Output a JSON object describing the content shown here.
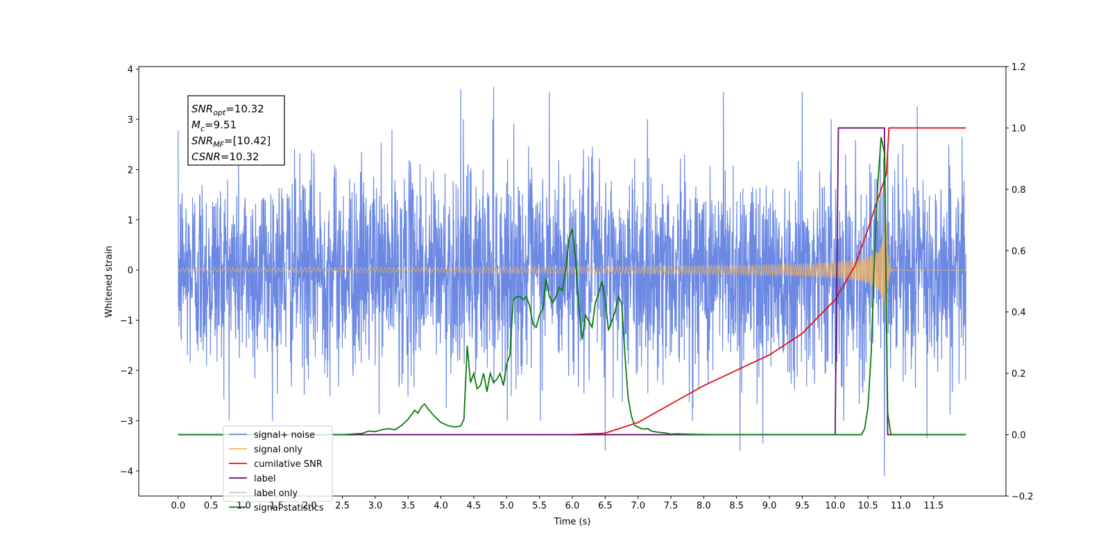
{
  "chart_data": {
    "type": "line",
    "title": "",
    "xlabel": "Time (s)",
    "ylabel": "Whitened strain",
    "y2label": "",
    "xlim": [
      -0.6,
      12.6
    ],
    "ylim": [
      -4.5,
      4.05
    ],
    "y2lim": [
      -0.2,
      1.2
    ],
    "x_ticks": [
      0.0,
      0.5,
      1.0,
      1.5,
      2.0,
      2.5,
      3.0,
      3.5,
      4.0,
      4.5,
      5.0,
      5.5,
      6.0,
      6.5,
      7.0,
      7.5,
      8.0,
      8.5,
      9.0,
      9.5,
      10.0,
      10.5,
      11.0,
      11.5
    ],
    "x_tick_labels": [
      "0.0",
      "0.5",
      "1.0",
      "1.5",
      "2.0",
      "2.5",
      "3.0",
      "3.5",
      "4.0",
      "4.5",
      "5.0",
      "5.5",
      "6.0",
      "6.5",
      "7.0",
      "7.5",
      "8.0",
      "8.5",
      "9.0",
      "9.5",
      "10.0",
      "10.5",
      "11.0",
      "11.5"
    ],
    "y_ticks": [
      -4,
      -3,
      -2,
      -1,
      0,
      1,
      2,
      3,
      4
    ],
    "y_tick_labels": [
      "−4",
      "−3",
      "−2",
      "−1",
      "0",
      "1",
      "2",
      "3",
      "4"
    ],
    "y2_ticks": [
      -0.2,
      0.0,
      0.2,
      0.4,
      0.6,
      0.8,
      1.0,
      1.2
    ],
    "y2_tick_labels": [
      "−0.2",
      "0.0",
      "0.2",
      "0.4",
      "0.6",
      "0.8",
      "1.0",
      "1.2"
    ],
    "grid": false,
    "legend_position": "bottom-left",
    "annotation": {
      "lines": [
        {
          "main": "SNR",
          "sub": "opt",
          "rest": "=10.32"
        },
        {
          "main": "M",
          "sub": "c",
          "rest": "=9.51"
        },
        {
          "main": "SNR",
          "sub": "MF",
          "rest": "=[10.42]"
        },
        {
          "main": "CSNR",
          "sub": "",
          "rest": "=10.32"
        }
      ]
    },
    "series": [
      {
        "name": "signal+ noise",
        "color": "#6b88e3",
        "axis": "left",
        "description_kind": "noise",
        "x_range": [
          0.0,
          11.99
        ],
        "typical_abs": 1.0,
        "peaks": [
          [
            4.3,
            3.6
          ],
          [
            4.8,
            3.65
          ],
          [
            5.65,
            3.55
          ],
          [
            6.5,
            3.5
          ],
          [
            8.3,
            3.55
          ],
          [
            9.5,
            3.55
          ],
          [
            10.75,
            -4.1
          ],
          [
            11.25,
            3.25
          ],
          [
            6.5,
            -3.6
          ],
          [
            8.55,
            -3.6
          ],
          [
            8.9,
            -3.45
          ],
          [
            11.4,
            -3.35
          ]
        ]
      },
      {
        "name": "signal only",
        "color": "#f7b55a",
        "axis": "left",
        "description_kind": "chirp",
        "x_range": [
          0.0,
          11.99
        ],
        "merger_time": 10.78,
        "peak_amplitude": 1.3
      },
      {
        "name": "cumilative SNR",
        "color": "#e01010",
        "axis": "right",
        "x": [
          6.0,
          6.5,
          7.0,
          7.5,
          8.0,
          8.5,
          9.0,
          9.5,
          10.0,
          10.3,
          10.5,
          10.7,
          10.78,
          10.82,
          11.0,
          11.5,
          11.99
        ],
        "y": [
          0.0,
          0.005,
          0.04,
          0.1,
          0.16,
          0.21,
          0.26,
          0.33,
          0.44,
          0.55,
          0.67,
          0.8,
          0.85,
          1.0,
          1.0,
          1.0,
          1.0
        ]
      },
      {
        "name": "label",
        "color": "#6a0a7a",
        "axis": "right",
        "x": [
          0.0,
          10.0,
          10.05,
          10.75,
          10.8,
          11.99
        ],
        "y": [
          0.0,
          0.0,
          1.0,
          1.0,
          0.0,
          0.0
        ]
      },
      {
        "name": "label only",
        "color": "#cccccc",
        "axis": "right",
        "hidden": true,
        "x": [],
        "y": []
      },
      {
        "name": "signal statistics",
        "color": "#0a7a0a",
        "axis": "right",
        "x": [
          0.0,
          2.5,
          2.8,
          2.9,
          3.0,
          3.1,
          3.2,
          3.3,
          3.4,
          3.5,
          3.55,
          3.6,
          3.65,
          3.7,
          3.75,
          3.8,
          3.9,
          4.0,
          4.1,
          4.2,
          4.3,
          4.35,
          4.4,
          4.45,
          4.5,
          4.55,
          4.6,
          4.65,
          4.7,
          4.75,
          4.8,
          4.85,
          4.9,
          4.95,
          5.0,
          5.05,
          5.1,
          5.15,
          5.2,
          5.25,
          5.3,
          5.35,
          5.4,
          5.45,
          5.5,
          5.55,
          5.6,
          5.65,
          5.7,
          5.75,
          5.8,
          5.85,
          5.9,
          5.95,
          6.0,
          6.05,
          6.1,
          6.15,
          6.2,
          6.25,
          6.3,
          6.35,
          6.4,
          6.45,
          6.5,
          6.55,
          6.6,
          6.65,
          6.7,
          6.75,
          6.8,
          6.85,
          6.9,
          6.95,
          7.0,
          7.05,
          7.1,
          7.15,
          7.2,
          7.3,
          7.4,
          7.5,
          7.6,
          7.7,
          7.9,
          8.2,
          8.6,
          9.0,
          9.5,
          10.0,
          10.4,
          10.45,
          10.5,
          10.55,
          10.6,
          10.65,
          10.7,
          10.75,
          10.8,
          10.85,
          11.99
        ],
        "y": [
          0.0,
          0.0,
          0.004,
          0.012,
          0.01,
          0.016,
          0.02,
          0.016,
          0.03,
          0.05,
          0.065,
          0.08,
          0.07,
          0.09,
          0.1,
          0.085,
          0.06,
          0.04,
          0.03,
          0.025,
          0.028,
          0.05,
          0.29,
          0.17,
          0.2,
          0.15,
          0.16,
          0.2,
          0.14,
          0.2,
          0.17,
          0.18,
          0.2,
          0.16,
          0.23,
          0.26,
          0.44,
          0.45,
          0.45,
          0.44,
          0.45,
          0.42,
          0.36,
          0.35,
          0.39,
          0.41,
          0.51,
          0.45,
          0.43,
          0.45,
          0.48,
          0.47,
          0.54,
          0.64,
          0.67,
          0.57,
          0.42,
          0.31,
          0.39,
          0.37,
          0.35,
          0.43,
          0.46,
          0.5,
          0.44,
          0.34,
          0.37,
          0.4,
          0.45,
          0.43,
          0.26,
          0.12,
          0.06,
          0.03,
          0.025,
          0.02,
          0.018,
          0.02,
          0.012,
          0.008,
          0.006,
          0.002,
          0.003,
          0.002,
          0.001,
          0.0,
          0.0,
          0.0,
          0.0,
          0.0,
          0.0,
          0.02,
          0.09,
          0.27,
          0.59,
          0.82,
          0.97,
          0.92,
          0.07,
          0.0,
          0.0
        ]
      }
    ]
  }
}
